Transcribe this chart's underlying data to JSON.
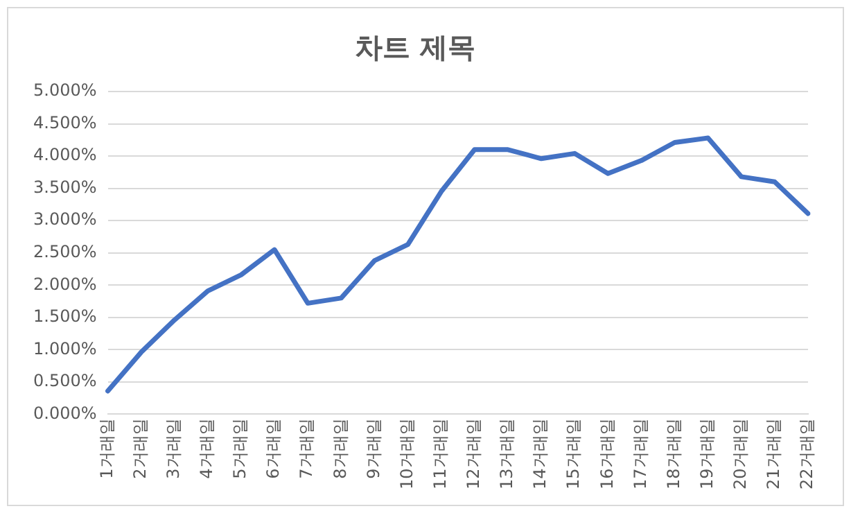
{
  "chart_data": {
    "type": "line",
    "title": "차트 제목",
    "categories": [
      "1거래일",
      "2거래일",
      "3거래일",
      "4거래일",
      "5거래일",
      "6거래일",
      "7거래일",
      "8거래일",
      "9거래일",
      "10거래일",
      "11거래일",
      "12거래일",
      "13거래일",
      "14거래일",
      "15거래일",
      "16거래일",
      "17거래일",
      "18거래일",
      "19거래일",
      "20거래일",
      "21거래일",
      "22거래일"
    ],
    "series": [
      {
        "color": "#4472c4",
        "values": [
          0.36,
          0.96,
          1.46,
          1.91,
          2.16,
          2.55,
          1.72,
          1.8,
          2.38,
          2.63,
          3.45,
          4.1,
          4.1,
          3.96,
          4.04,
          3.73,
          3.93,
          4.21,
          4.28,
          3.68,
          3.6,
          3.11
        ]
      }
    ],
    "ylim": [
      0,
      5
    ],
    "yticks": [
      {
        "value": 0,
        "label": "0.000%"
      },
      {
        "value": 0.5,
        "label": "0.500%"
      },
      {
        "value": 1,
        "label": "1.000%"
      },
      {
        "value": 1.5,
        "label": "1.500%"
      },
      {
        "value": 2,
        "label": "2.000%"
      },
      {
        "value": 2.5,
        "label": "2.500%"
      },
      {
        "value": 3,
        "label": "3.000%"
      },
      {
        "value": 3.5,
        "label": "3.500%"
      },
      {
        "value": 4,
        "label": "4.000%"
      },
      {
        "value": 4.5,
        "label": "4.500%"
      },
      {
        "value": 5,
        "label": "5.000%"
      }
    ],
    "grid": "y",
    "legend": false,
    "marker": "none",
    "line_style": "solid"
  }
}
